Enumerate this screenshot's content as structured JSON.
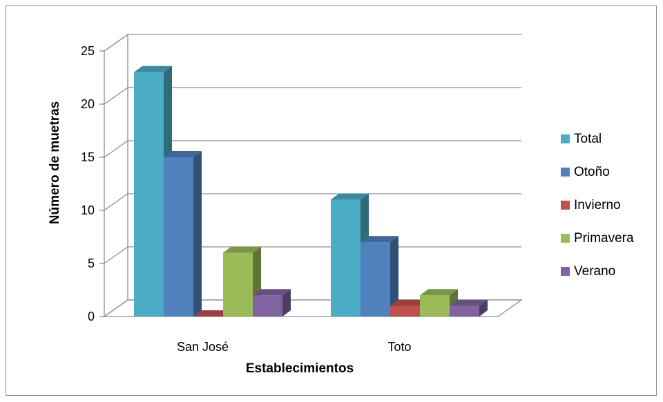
{
  "chart_data": {
    "type": "bar",
    "style": "3d-clustered-column",
    "title": "",
    "xlabel": "Establecimientos",
    "ylabel": "Número de muetras",
    "ylim": [
      0,
      25
    ],
    "yticks": [
      0,
      5,
      10,
      15,
      20,
      25
    ],
    "grid": true,
    "legend_position": "right",
    "categories": [
      "San José",
      "Toto"
    ],
    "series": [
      {
        "name": "Total",
        "color": "#4bacc6",
        "values": [
          23,
          11
        ]
      },
      {
        "name": "Otoño",
        "color": "#4f81bd",
        "values": [
          15,
          7
        ]
      },
      {
        "name": "Invierno",
        "color": "#c0504d",
        "values": [
          0,
          1
        ]
      },
      {
        "name": "Primavera",
        "color": "#9bbb59",
        "values": [
          6,
          2
        ]
      },
      {
        "name": "Verano",
        "color": "#8064a2",
        "values": [
          2,
          1
        ]
      }
    ]
  }
}
